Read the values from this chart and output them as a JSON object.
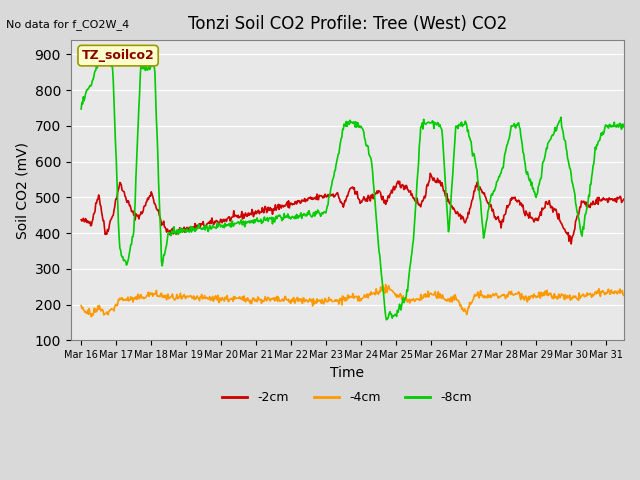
{
  "title": "Tonzi Soil CO2 Profile: Tree (West) CO2",
  "no_data_text": "No data for f_CO2W_4",
  "ylabel": "Soil CO2 (mV)",
  "xlabel": "Time",
  "legend_label": "TZ_soilco2",
  "ylim": [
    100,
    940
  ],
  "yticks": [
    100,
    200,
    300,
    400,
    500,
    600,
    700,
    800,
    900
  ],
  "series_labels": [
    "-2cm",
    "-4cm",
    "-8cm"
  ],
  "series_colors": [
    "#cc0000",
    "#ff9900",
    "#00cc00"
  ],
  "background_color": "#e8e8e8",
  "plot_bg_color": "#e8e8e8",
  "xtick_labels": [
    "Mar 16",
    "Mar 17",
    "Mar 18",
    "Mar 19",
    "Mar 20",
    "Mar 21",
    "Mar 22",
    "Mar 23",
    "Mar 24",
    "Mar 25",
    "Mar 26",
    "Mar 27",
    "Mar 28",
    "Mar 29",
    "Mar 30",
    "Mar 31"
  ],
  "n_days": 16,
  "start_day": 16,
  "red_x": [
    0,
    0.3,
    0.5,
    0.7,
    0.9,
    1.1,
    1.5,
    1.7,
    2.0,
    2.3,
    2.5,
    7.0,
    7.3,
    7.5,
    7.7,
    8.0,
    8.3,
    8.5,
    8.7,
    9.0,
    9.3,
    9.5,
    9.7,
    10.0,
    10.3,
    10.5,
    10.7,
    11.0,
    11.3,
    11.5,
    11.7,
    12.0,
    12.3,
    12.5,
    12.7,
    13.0,
    13.3,
    13.5,
    13.7,
    14.0,
    14.3,
    14.5,
    14.7,
    15.0
  ],
  "red_y": [
    435,
    430,
    510,
    395,
    450,
    540,
    450,
    450,
    515,
    430,
    400,
    505,
    510,
    475,
    530,
    490,
    500,
    520,
    480,
    540,
    530,
    500,
    475,
    560,
    535,
    490,
    460,
    435,
    540,
    510,
    470,
    425,
    500,
    490,
    455,
    430,
    490,
    470,
    430,
    380,
    490,
    475,
    490,
    495
  ],
  "orange_x": [
    0,
    0.3,
    0.5,
    0.7,
    0.9,
    1.1,
    1.5,
    1.7,
    2.0,
    2.3,
    2.5,
    7.0,
    7.3,
    7.5,
    7.7,
    8.0,
    8.3,
    8.5,
    8.7,
    9.0,
    9.3,
    9.5,
    9.7,
    10.0,
    10.3,
    10.5,
    10.7,
    11.0,
    11.3,
    11.5,
    11.7,
    12.0,
    12.3,
    12.5,
    12.7,
    13.0,
    13.3,
    13.5,
    13.7,
    14.0,
    14.3,
    14.5,
    14.7,
    15.0
  ],
  "orange_y": [
    195,
    170,
    190,
    175,
    185,
    215,
    215,
    220,
    230,
    225,
    220,
    210,
    210,
    215,
    220,
    215,
    230,
    240,
    245,
    230,
    215,
    210,
    220,
    230,
    220,
    215,
    220,
    175,
    235,
    220,
    225,
    225,
    230,
    230,
    220,
    225,
    230,
    220,
    225,
    215,
    225,
    225,
    230,
    235
  ],
  "green_x": [
    0,
    0.3,
    0.5,
    0.7,
    0.9,
    1.1,
    1.3,
    1.5,
    1.7,
    1.9,
    2.1,
    2.3,
    2.5,
    7.0,
    7.3,
    7.5,
    7.7,
    8.0,
    8.3,
    8.5,
    8.7,
    9.0,
    9.3,
    9.5,
    9.7,
    10.0,
    10.3,
    10.5,
    10.7,
    11.0,
    11.3,
    11.5,
    11.7,
    12.0,
    12.3,
    12.5,
    12.7,
    13.0,
    13.3,
    13.5,
    13.7,
    14.0,
    14.3,
    14.5,
    14.7,
    15.0
  ],
  "green_y": [
    755,
    820,
    880,
    880,
    870,
    350,
    310,
    400,
    870,
    860,
    870,
    305,
    400,
    460,
    600,
    700,
    710,
    700,
    600,
    360,
    165,
    175,
    225,
    390,
    700,
    710,
    700,
    390,
    700,
    710,
    580,
    390,
    500,
    570,
    700,
    710,
    580,
    500,
    640,
    680,
    720,
    560,
    390,
    500,
    640,
    700
  ]
}
